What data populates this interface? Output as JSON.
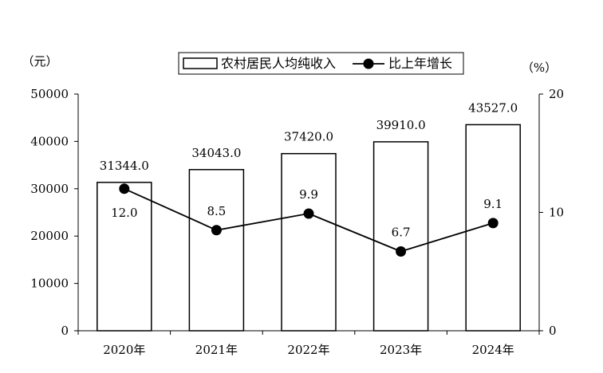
{
  "chart_data": {
    "type": "bar+line",
    "categories": [
      "2020年",
      "2021年",
      "2022年",
      "2023年",
      "2024年"
    ],
    "series": [
      {
        "name": "农村居民人均纯收入",
        "type": "bar",
        "axis": "left",
        "values": [
          31344.0,
          34043.0,
          37420.0,
          39910.0,
          43527.0
        ],
        "labels": [
          "31344.0",
          "34043.0",
          "37420.0",
          "39910.0",
          "43527.0"
        ]
      },
      {
        "name": "比上年增长",
        "type": "line",
        "axis": "right",
        "values": [
          12.0,
          8.5,
          9.9,
          6.7,
          9.1
        ],
        "labels": [
          "12.0",
          "8.5",
          "9.9",
          "6.7",
          "9.1"
        ]
      }
    ],
    "y_left": {
      "unit": "（元）",
      "ylim": [
        0,
        50000
      ],
      "ticks": [
        "0",
        "10000",
        "20000",
        "30000",
        "40000",
        "50000"
      ]
    },
    "y_right": {
      "unit": "（%）",
      "ylim": [
        0,
        20
      ],
      "ticks": [
        "0",
        "10",
        "20"
      ]
    },
    "grid": false,
    "legend": "top-center",
    "colors": {
      "bar_fill": "#ffffff",
      "bar_stroke": "#000000",
      "line": "#000000",
      "marker": "#000000",
      "text": "#000000"
    }
  }
}
